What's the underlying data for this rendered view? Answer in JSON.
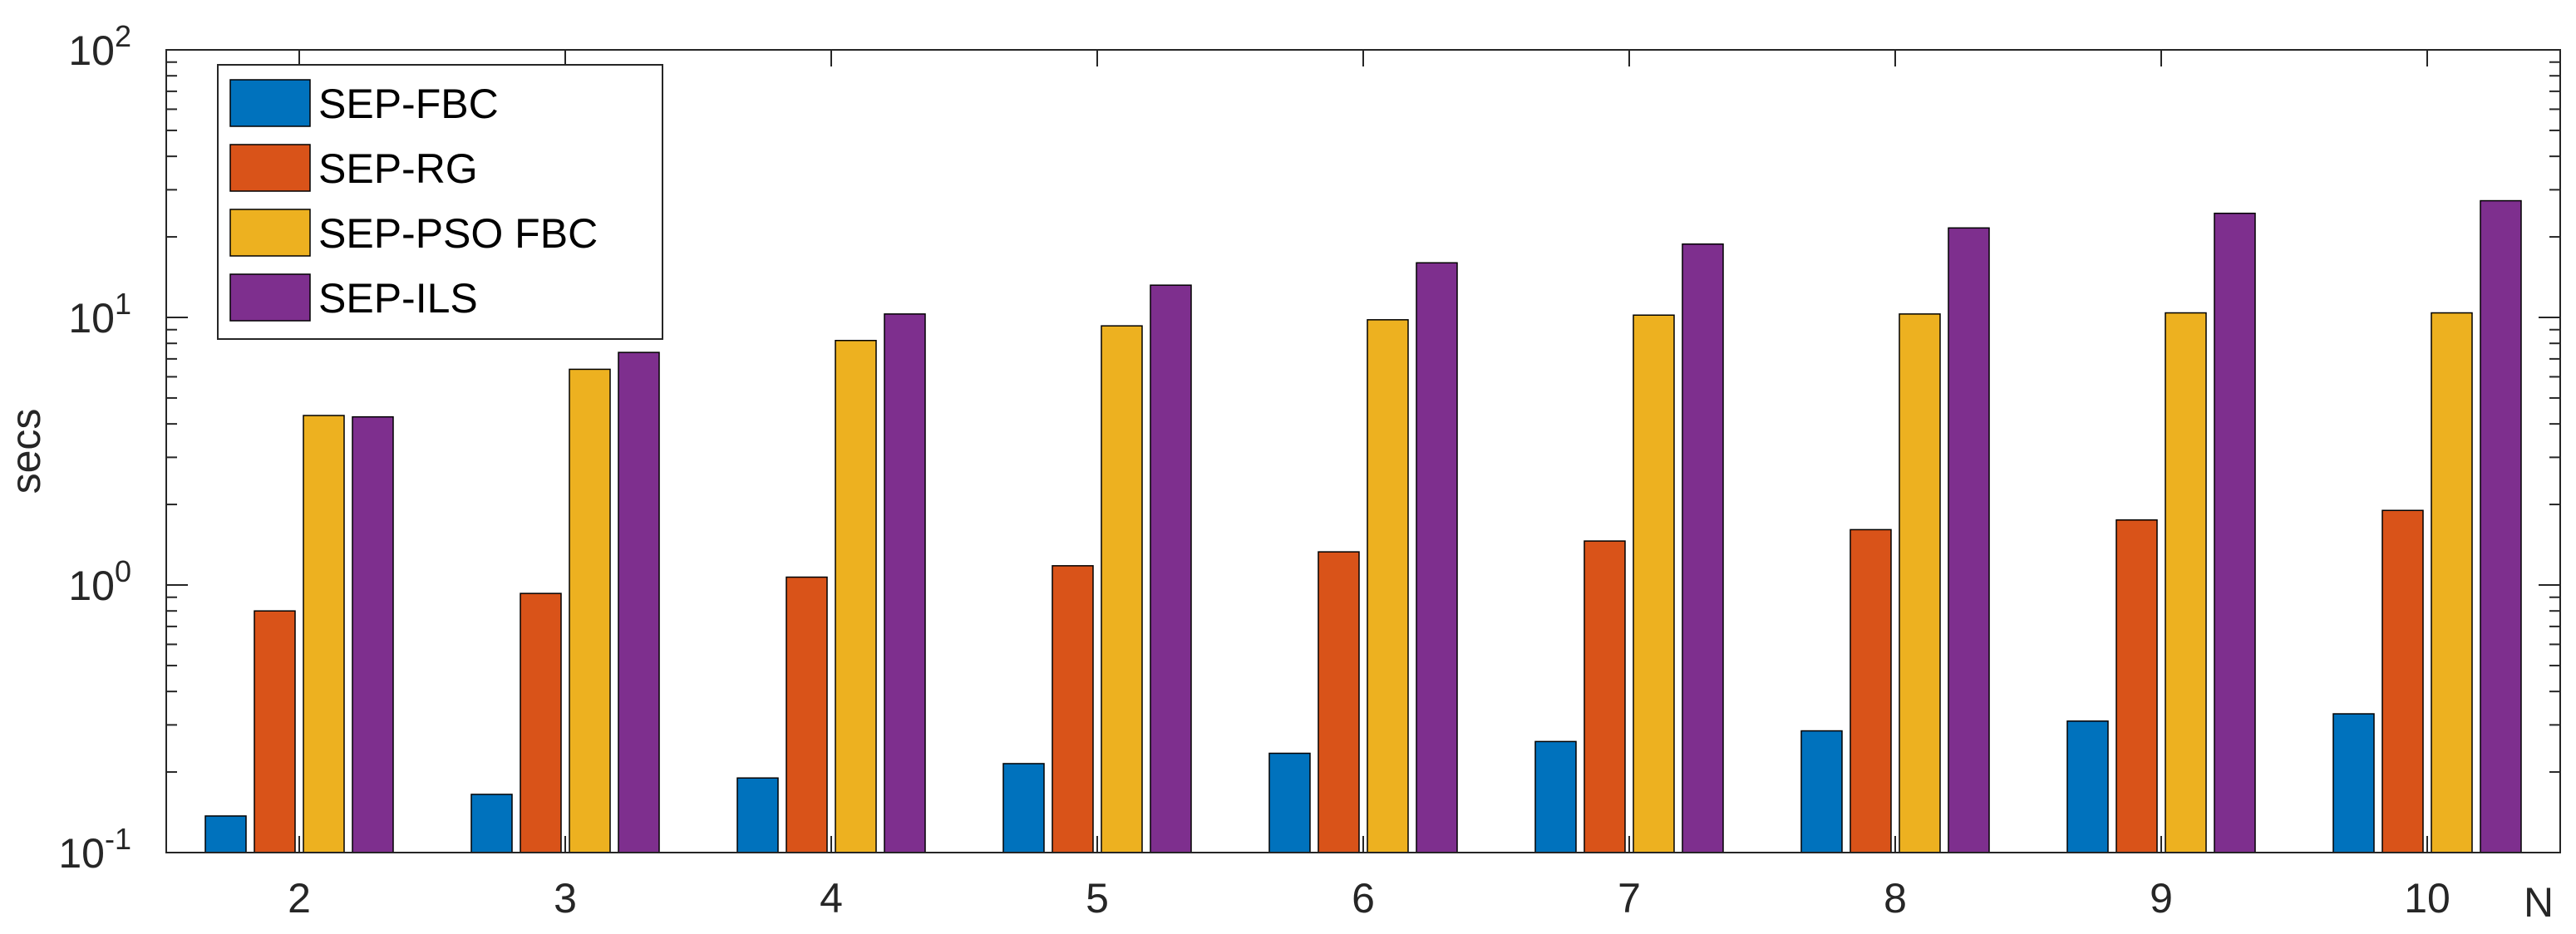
{
  "chart_data": {
    "type": "bar",
    "scale": "log",
    "categories": [
      "2",
      "3",
      "4",
      "5",
      "6",
      "7",
      "8",
      "9",
      "10"
    ],
    "series": [
      {
        "name": "SEP-FBC",
        "color": "#0072BD",
        "values": [
          0.137,
          0.165,
          0.19,
          0.215,
          0.235,
          0.26,
          0.285,
          0.31,
          0.33
        ]
      },
      {
        "name": "SEP-RG",
        "color": "#D95319",
        "values": [
          0.8,
          0.93,
          1.07,
          1.18,
          1.33,
          1.46,
          1.61,
          1.75,
          1.9
        ]
      },
      {
        "name": "SEP-PSO FBC",
        "color": "#EDB120",
        "values": [
          4.3,
          6.4,
          8.2,
          9.3,
          9.8,
          10.2,
          10.3,
          10.4,
          10.4
        ]
      },
      {
        "name": "SEP-ILS",
        "color": "#7E2F8E",
        "values": [
          4.25,
          7.4,
          10.3,
          13.2,
          16.0,
          18.8,
          21.6,
          24.5,
          27.3
        ]
      }
    ],
    "title": "",
    "xlabel": "N",
    "ylabel": "secs",
    "ylim": [
      0.1,
      100
    ],
    "yticks": [
      {
        "base": "10",
        "exp": "-1"
      },
      {
        "base": "10",
        "exp": "0"
      },
      {
        "base": "10",
        "exp": "1"
      },
      {
        "base": "10",
        "exp": "2"
      }
    ],
    "grid": false,
    "legend_position": "top-left"
  }
}
